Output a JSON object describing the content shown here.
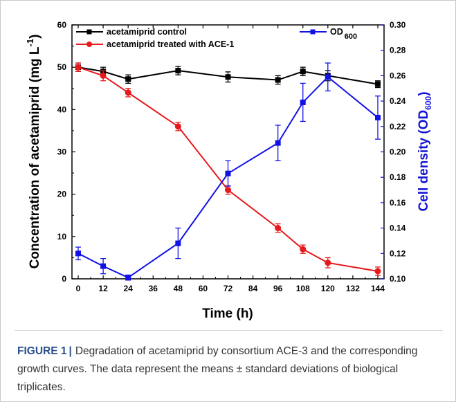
{
  "caption": {
    "label": "FIGURE 1",
    "separator": "|",
    "text": "Degradation of acetamiprid by consortium ACE-3 and the corresponding growth curves. The data represent the means ± standard deviations of biological triplicates."
  },
  "chart_data": {
    "type": "line",
    "xlabel": "Time (h)",
    "ylabel_left": {
      "base": "Concentration of acetamiprid (mg L",
      "sup": "-1",
      "tail": ")"
    },
    "ylabel_right": {
      "base": "Cell density (OD",
      "sub": "600",
      "tail": ")"
    },
    "x_ticks": [
      0,
      12,
      24,
      36,
      48,
      60,
      72,
      84,
      96,
      108,
      120,
      132,
      144
    ],
    "xlim": [
      -3,
      147
    ],
    "ylim_left": [
      0,
      60
    ],
    "y_ticks_left": [
      0,
      10,
      20,
      30,
      40,
      50,
      60
    ],
    "ylim_right": [
      0.1,
      0.3
    ],
    "y_ticks_right": [
      "0.10",
      "0.12",
      "0.14",
      "0.16",
      "0.18",
      "0.20",
      "0.22",
      "0.24",
      "0.26",
      "0.28",
      "0.30"
    ],
    "legend_placement": "top-left and top-right",
    "series": [
      {
        "name": "acetamiprid control",
        "axis": "left",
        "color": "#000000",
        "marker": "square",
        "x": [
          0,
          12,
          24,
          48,
          72,
          96,
          108,
          120,
          144
        ],
        "y": [
          50.0,
          49.0,
          47.2,
          49.2,
          47.7,
          47.0,
          49.0,
          48.0,
          46.0
        ],
        "err": [
          1.0,
          1.0,
          1.0,
          1.0,
          1.2,
          1.0,
          1.0,
          1.2,
          0.8
        ]
      },
      {
        "name": "acetamiprid treated with ACE-1",
        "axis": "left",
        "color": "#e8191b",
        "marker": "circle",
        "x": [
          0,
          12,
          24,
          48,
          72,
          96,
          108,
          120,
          144
        ],
        "y": [
          50.0,
          48.0,
          44.0,
          36.0,
          21.0,
          12.0,
          7.0,
          3.8,
          1.8
        ],
        "err": [
          1.0,
          1.2,
          1.0,
          1.0,
          1.0,
          1.0,
          1.0,
          1.2,
          1.0
        ]
      },
      {
        "name": "OD",
        "name_sub": "600",
        "axis": "right",
        "color": "#1212e6",
        "marker": "square",
        "x": [
          0,
          12,
          24,
          48,
          72,
          96,
          108,
          120,
          144
        ],
        "y": [
          0.12,
          0.11,
          0.101,
          0.128,
          0.183,
          0.207,
          0.239,
          0.259,
          0.227
        ],
        "err": [
          0.005,
          0.006,
          0.002,
          0.012,
          0.01,
          0.014,
          0.015,
          0.011,
          0.017
        ]
      }
    ]
  }
}
